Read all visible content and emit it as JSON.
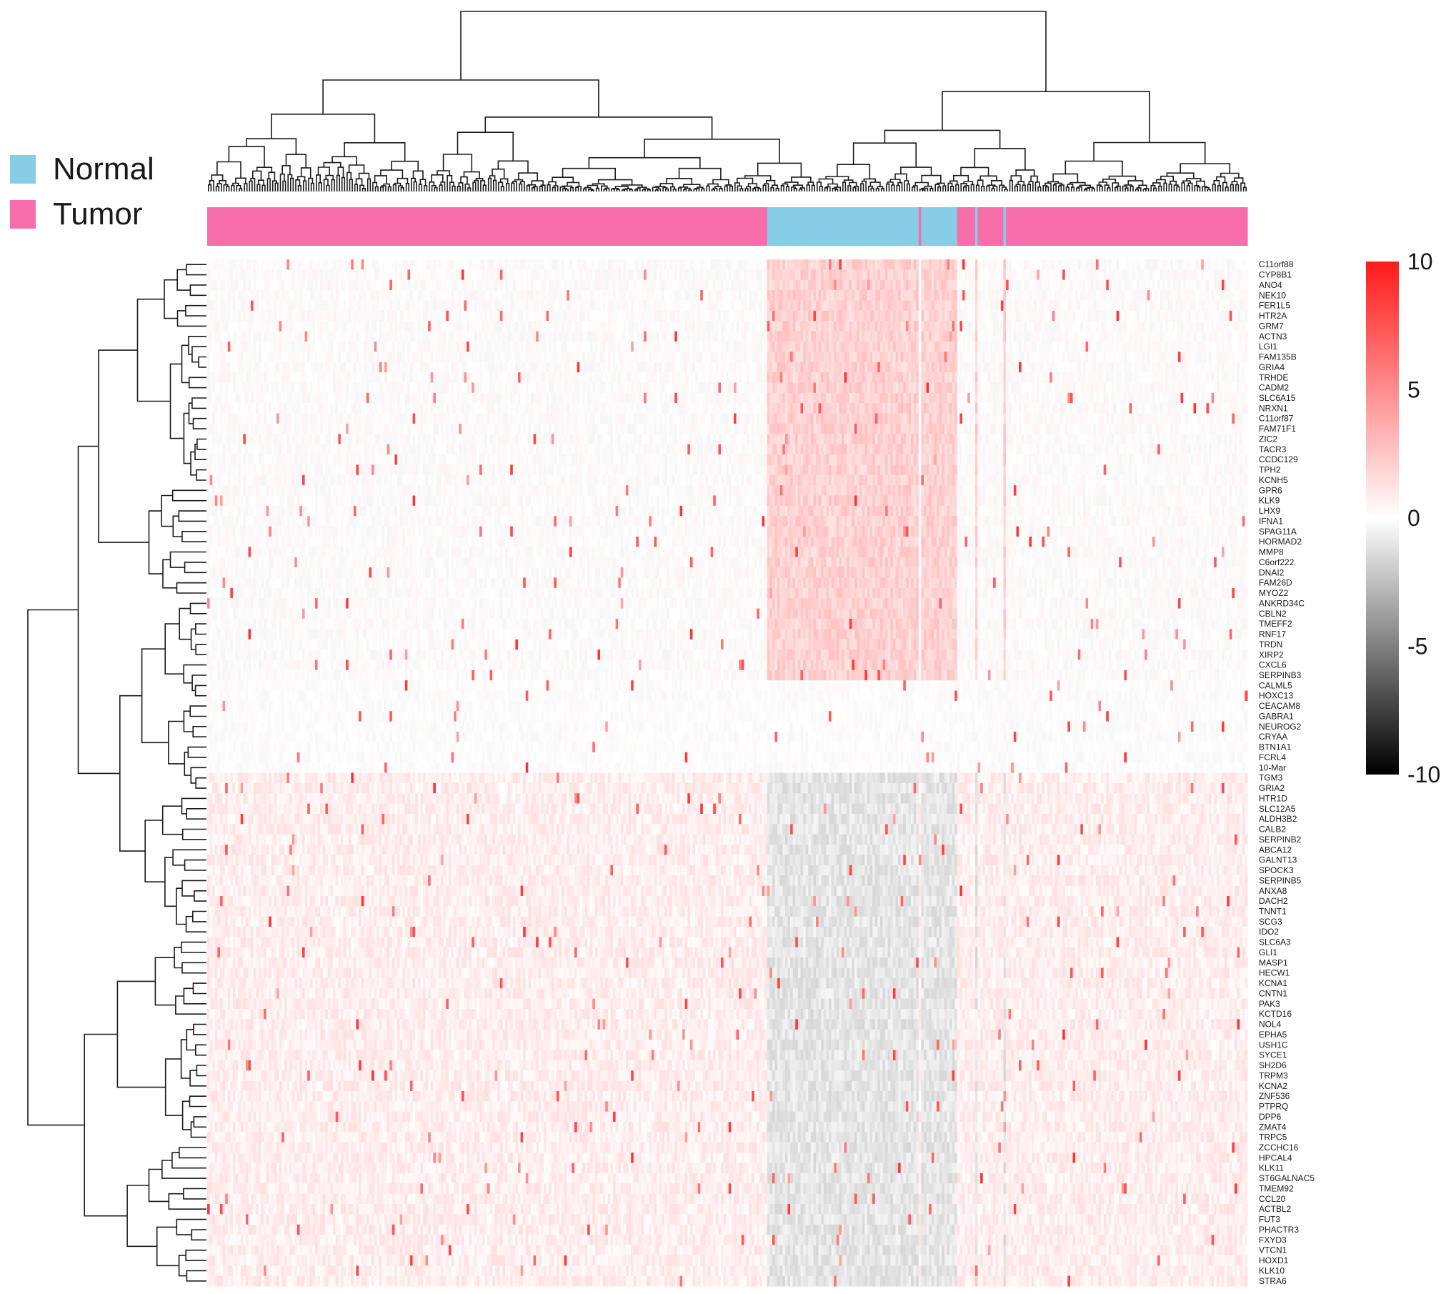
{
  "legend": [
    {
      "label": "Normal",
      "color": "#87cde6"
    },
    {
      "label": "Tumor",
      "color": "#f76eab"
    }
  ],
  "colors": {
    "high": "#ff1a1a",
    "mid": "#ffffff",
    "low": "#000000"
  },
  "chart_data": {
    "type": "heatmap",
    "title": "",
    "xlabel": "",
    "ylabel": "",
    "column_annotation": [
      {
        "group": "Tumor",
        "count": 218
      },
      {
        "group": "Normal",
        "count": 59
      },
      {
        "group": "Tumor",
        "count": 1
      },
      {
        "group": "Normal",
        "count": 14
      },
      {
        "group": "Tumor",
        "count": 7
      },
      {
        "group": "Normal",
        "count": 1
      },
      {
        "group": "Tumor",
        "count": 10
      },
      {
        "group": "Normal",
        "count": 1
      },
      {
        "group": "Tumor",
        "count": 94
      }
    ],
    "rows": [
      "C11orf88",
      "CYP8B1",
      "ANO4",
      "NEK10",
      "FER1L5",
      "HTR2A",
      "GRM7",
      "ACTN3",
      "LGI1",
      "FAM135B",
      "GRIA4",
      "TRHDE",
      "CADM2",
      "SLC6A15",
      "NRXN1",
      "C11orf87",
      "FAM71F1",
      "ZIC2",
      "TACR3",
      "CCDC129",
      "TPH2",
      "KCNH5",
      "GPR6",
      "KLK9",
      "LHX9",
      "IFNA1",
      "SPAG11A",
      "HORMAD2",
      "MMP8",
      "C6orf222",
      "DNAI2",
      "FAM26D",
      "MYOZ2",
      "ANKRD34C",
      "CBLN2",
      "TMEFF2",
      "RNF17",
      "TRDN",
      "XIRP2",
      "CXCL6",
      "SERPINB3",
      "CALML5",
      "HOXC13",
      "CEACAM8",
      "GABRA1",
      "NEUROG2",
      "CRYAA",
      "BTN1A1",
      "FCRL4",
      "10-Mar",
      "TGM3",
      "GRIA2",
      "HTR1D",
      "SLC12A5",
      "ALDH3B2",
      "CALB2",
      "SERPINB2",
      "ABCA12",
      "GALNT13",
      "SPOCK3",
      "SERPINB5",
      "ANXA8",
      "DACH2",
      "TNNT1",
      "SCG3",
      "IDO2",
      "SLC6A3",
      "GLI1",
      "MASP1",
      "HECW1",
      "KCNA1",
      "CNTN1",
      "PAK3",
      "KCTD16",
      "NOL4",
      "EPHA5",
      "USH1C",
      "SYCE1",
      "SH2D6",
      "TRPM3",
      "KCNA2",
      "ZNF536",
      "PTPRQ",
      "DPP6",
      "ZMAT4",
      "TRPC5",
      "ZCCHC16",
      "HPCAL4",
      "KLK11",
      "ST6GALNAC5",
      "TMEM92",
      "CCL20",
      "ACTBL2",
      "FUT3",
      "PHACTR3",
      "FXYD3",
      "VTCN1",
      "HOXD1",
      "KLK10",
      "STRA6"
    ],
    "value_range": [
      -10,
      10
    ],
    "colorbar_ticks": [
      10,
      5,
      0,
      -5,
      -10
    ],
    "row_dendrogram": true,
    "column_dendrogram": true
  }
}
